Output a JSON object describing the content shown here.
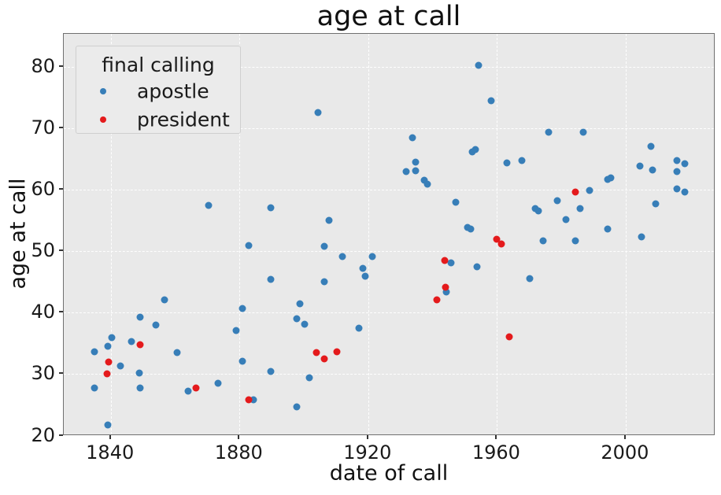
{
  "title": "age at call",
  "xlabel": "date of call",
  "ylabel": "age at call",
  "legend": {
    "title": "final calling",
    "entries": [
      {
        "label": "apostle",
        "color": "#377eb8"
      },
      {
        "label": "president",
        "color": "#e41a1c"
      }
    ],
    "position": "upper left"
  },
  "colors": {
    "figure_background": "#ffffff",
    "axes_background": "#e9e9e9",
    "grid": "#ffffff",
    "spine": "#707070",
    "text": "#1a1a1a",
    "apostle": "#377eb8",
    "president": "#e41a1c"
  },
  "chart_data": {
    "type": "scatter",
    "title": "age at call",
    "xlabel": "date of call",
    "ylabel": "age at call",
    "xlim": [
      1825.4,
      2027.9
    ],
    "ylim": [
      19.95,
      85.35
    ],
    "xticks": [
      1840,
      1880,
      1920,
      1960,
      2000
    ],
    "yticks": [
      20,
      30,
      40,
      50,
      60,
      70,
      80
    ],
    "grid": "white dashed on gray background",
    "legend_position": "upper left",
    "series": [
      {
        "name": "apostle",
        "color": "#377eb8",
        "points": [
          [
            1835.0,
            33.6
          ],
          [
            1835.0,
            27.8
          ],
          [
            1839.0,
            34.6
          ],
          [
            1839.2,
            21.8
          ],
          [
            1840.3,
            35.9
          ],
          [
            1843.0,
            31.3
          ],
          [
            1846.5,
            35.3
          ],
          [
            1849.1,
            39.3
          ],
          [
            1849.0,
            30.2
          ],
          [
            1849.1,
            27.8
          ],
          [
            1854.0,
            38.0
          ],
          [
            1856.8,
            42.1
          ],
          [
            1860.6,
            33.5
          ],
          [
            1864.1,
            27.2
          ],
          [
            1870.5,
            57.4
          ],
          [
            1873.3,
            28.5
          ],
          [
            1879.0,
            37.1
          ],
          [
            1880.8,
            40.7
          ],
          [
            1880.8,
            32.1
          ],
          [
            1882.8,
            50.9
          ],
          [
            1884.3,
            25.9
          ],
          [
            1889.8,
            57.1
          ],
          [
            1889.8,
            45.4
          ],
          [
            1889.8,
            30.4
          ],
          [
            1897.8,
            39.0
          ],
          [
            1897.8,
            24.7
          ],
          [
            1898.8,
            41.4
          ],
          [
            1900.3,
            38.1
          ],
          [
            1901.8,
            29.4
          ],
          [
            1904.5,
            72.5
          ],
          [
            1906.3,
            50.8
          ],
          [
            1906.3,
            45.0
          ],
          [
            1907.8,
            55.0
          ],
          [
            1911.9,
            49.1
          ],
          [
            1917.0,
            37.5
          ],
          [
            1918.3,
            47.2
          ],
          [
            1919.0,
            45.9
          ],
          [
            1921.2,
            49.1
          ],
          [
            1931.8,
            63.0
          ],
          [
            1933.8,
            68.4
          ],
          [
            1934.8,
            64.5
          ],
          [
            1934.8,
            63.1
          ],
          [
            1937.3,
            61.5
          ],
          [
            1938.3,
            60.9
          ],
          [
            1944.3,
            43.4
          ],
          [
            1945.8,
            48.1
          ],
          [
            1947.3,
            57.9
          ],
          [
            1950.8,
            53.9
          ],
          [
            1951.8,
            53.6
          ],
          [
            1952.3,
            66.2
          ],
          [
            1953.3,
            66.5
          ],
          [
            1953.8,
            47.5
          ],
          [
            1954.3,
            80.2
          ],
          [
            1958.3,
            74.5
          ],
          [
            1963.0,
            64.4
          ],
          [
            1967.8,
            64.7
          ],
          [
            1970.3,
            45.6
          ],
          [
            1971.9,
            57.0
          ],
          [
            1972.8,
            56.5
          ],
          [
            1974.3,
            51.7
          ],
          [
            1976.0,
            69.3
          ],
          [
            1978.8,
            58.2
          ],
          [
            1981.5,
            55.1
          ],
          [
            1984.3,
            51.7
          ],
          [
            1985.8,
            57.0
          ],
          [
            1986.8,
            69.3
          ],
          [
            1988.8,
            59.9
          ],
          [
            1994.3,
            61.7
          ],
          [
            1995.3,
            61.9
          ],
          [
            1994.5,
            53.6
          ],
          [
            2004.5,
            63.8
          ],
          [
            2004.8,
            52.3
          ],
          [
            2007.8,
            67.1
          ],
          [
            2008.3,
            63.2
          ],
          [
            2009.3,
            57.7
          ],
          [
            2015.8,
            64.8
          ],
          [
            2015.8,
            62.9
          ],
          [
            2015.8,
            60.2
          ],
          [
            2018.3,
            64.2
          ],
          [
            2018.3,
            59.6
          ]
        ]
      },
      {
        "name": "president",
        "color": "#e41a1c",
        "points": [
          [
            1838.9,
            30.1
          ],
          [
            1839.3,
            32.0
          ],
          [
            1849.1,
            34.8
          ],
          [
            1866.5,
            27.7
          ],
          [
            1882.8,
            25.9
          ],
          [
            1903.8,
            33.5
          ],
          [
            1906.3,
            32.5
          ],
          [
            1910.3,
            33.7
          ],
          [
            1941.3,
            42.1
          ],
          [
            1943.8,
            48.5
          ],
          [
            1943.9,
            44.2
          ],
          [
            1959.8,
            51.9
          ],
          [
            1961.3,
            51.2
          ],
          [
            1963.8,
            36.1
          ],
          [
            1984.3,
            59.6
          ]
        ]
      }
    ]
  }
}
